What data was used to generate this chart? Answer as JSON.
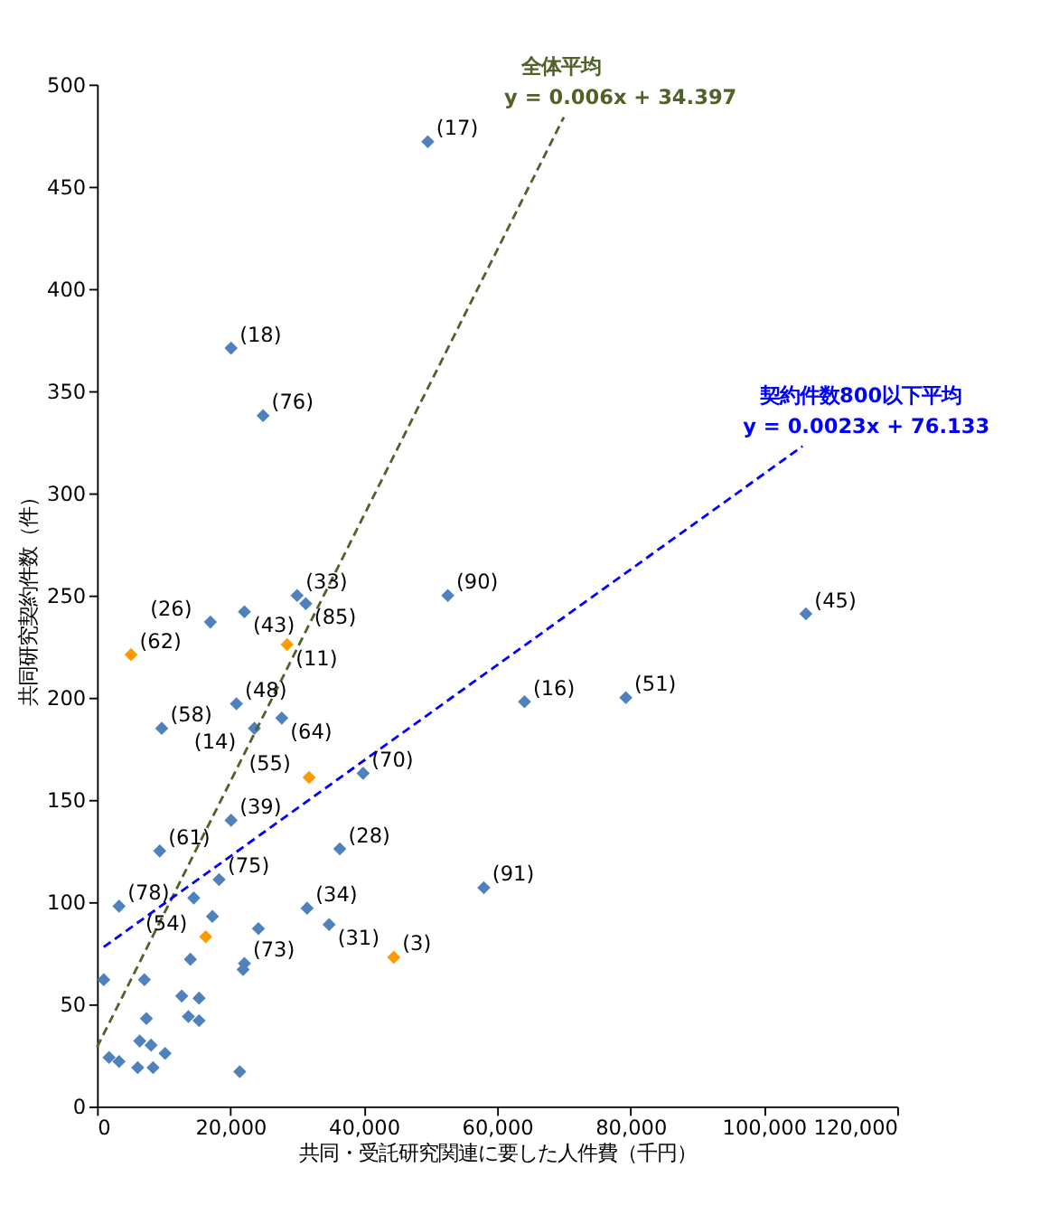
{
  "chart_data": {
    "type": "scatter",
    "xlabel": "共同・受託研究関連に要した人件費（千円）",
    "ylabel": "共同研究契約件数（件）",
    "xlim": [
      0,
      120000
    ],
    "xticks": [
      0,
      {
        "value": 20000,
        "label": "20,000"
      },
      {
        "value": 40000,
        "label": "40,000"
      },
      {
        "value": 60000,
        "label": "60,000"
      },
      {
        "value": 80000,
        "label": "80,000"
      },
      {
        "value": 100000,
        "label": "100,000"
      },
      {
        "value": 120000,
        "label": "120,000"
      }
    ],
    "ylim": [
      0,
      500
    ],
    "yticks": [
      0,
      50,
      100,
      150,
      200,
      250,
      300,
      350,
      400,
      450,
      500
    ],
    "grid": false,
    "legend": false,
    "marker": "diamond",
    "series": [
      {
        "color": "#4f81bd",
        "x": [
          49600,
          20100,
          24900,
          52600,
          106300,
          64100,
          79300,
          30000,
          31300,
          22100,
          17000,
          20900,
          27700,
          9700,
          23600,
          39900,
          20100,
          9400,
          36400,
          18300,
          58000,
          3300,
          31500,
          14500,
          17300,
          24200,
          34800,
          22100,
          21900,
          14000,
          1000,
          7100,
          12700,
          15300,
          13700,
          15300,
          7400,
          6400,
          8100,
          1800,
          3300,
          10200,
          6100,
          8400,
          21400
        ],
        "values": [
          472,
          371,
          338,
          250,
          241,
          198,
          200,
          250,
          246,
          242,
          237,
          197,
          190,
          185,
          185,
          163,
          140,
          125,
          126,
          111,
          107,
          98,
          97,
          102,
          93,
          87,
          89,
          70,
          67,
          72,
          62,
          62,
          54,
          53,
          44,
          42,
          43,
          32,
          30,
          24,
          22,
          26,
          19,
          19,
          17
        ]
      },
      {
        "color": "#ff9900",
        "x": [
          5100,
          28500,
          31800,
          16300,
          44500
        ],
        "values": [
          221,
          226,
          161,
          83,
          73
        ]
      },
      {
        "type": "line",
        "name": "全体平均",
        "color": "#4f6228",
        "line_style": "dashed",
        "marker": "none",
        "x": [
          0,
          70000
        ],
        "values": [
          29,
          484
        ]
      },
      {
        "type": "line",
        "name": "契約件数800以下平均",
        "color": "#0000ff",
        "line_style": "dashed",
        "marker": "none",
        "x": [
          1000,
          105800
        ],
        "values": [
          78,
          323
        ]
      }
    ],
    "annotations": [
      {
        "text": "y = 0.006x + 34.397",
        "x": 70000,
        "y": 484
      },
      {
        "text": "y = 0.0023x + 76.133",
        "x": 105800,
        "y": 323
      },
      {
        "text": "(17)",
        "x": 49600,
        "y": 472
      },
      {
        "text": "(18)",
        "x": 20100,
        "y": 371
      },
      {
        "text": "(76)",
        "x": 24900,
        "y": 338
      },
      {
        "text": "(90)",
        "x": 52600,
        "y": 250
      },
      {
        "text": "(45)",
        "x": 106300,
        "y": 241
      },
      {
        "text": "(16)",
        "x": 64100,
        "y": 198
      },
      {
        "text": "(51)",
        "x": 79300,
        "y": 200
      },
      {
        "text": "(33)",
        "x": 30000,
        "y": 250
      },
      {
        "text": "(85)",
        "x": 31300,
        "y": 246
      },
      {
        "text": "(43)",
        "x": 22100,
        "y": 242
      },
      {
        "text": "(26)",
        "x": 17000,
        "y": 237
      },
      {
        "text": "(48)",
        "x": 20900,
        "y": 197
      },
      {
        "text": "(64)",
        "x": 27700,
        "y": 190
      },
      {
        "text": "(58)",
        "x": 9700,
        "y": 185
      },
      {
        "text": "(14)",
        "x": 23600,
        "y": 185
      },
      {
        "text": "(70)",
        "x": 39900,
        "y": 163
      },
      {
        "text": "(39)",
        "x": 20100,
        "y": 140
      },
      {
        "text": "(61)",
        "x": 9400,
        "y": 125
      },
      {
        "text": "(28)",
        "x": 36400,
        "y": 126
      },
      {
        "text": "(75)",
        "x": 18300,
        "y": 111
      },
      {
        "text": "(91)",
        "x": 58000,
        "y": 107
      },
      {
        "text": "(78)",
        "x": 3300,
        "y": 98
      },
      {
        "text": "(34)",
        "x": 31500,
        "y": 97
      },
      {
        "text": "(31)",
        "x": 34800,
        "y": 89
      },
      {
        "text": "(73)",
        "x": 22100,
        "y": 70
      },
      {
        "text": "(62)",
        "x": 5100,
        "y": 221
      },
      {
        "text": "(11)",
        "x": 28500,
        "y": 226
      },
      {
        "text": "(55)",
        "x": 31800,
        "y": 161
      },
      {
        "text": "(54)",
        "x": 16300,
        "y": 83
      },
      {
        "text": "(3)",
        "x": 44500,
        "y": 73
      }
    ]
  }
}
